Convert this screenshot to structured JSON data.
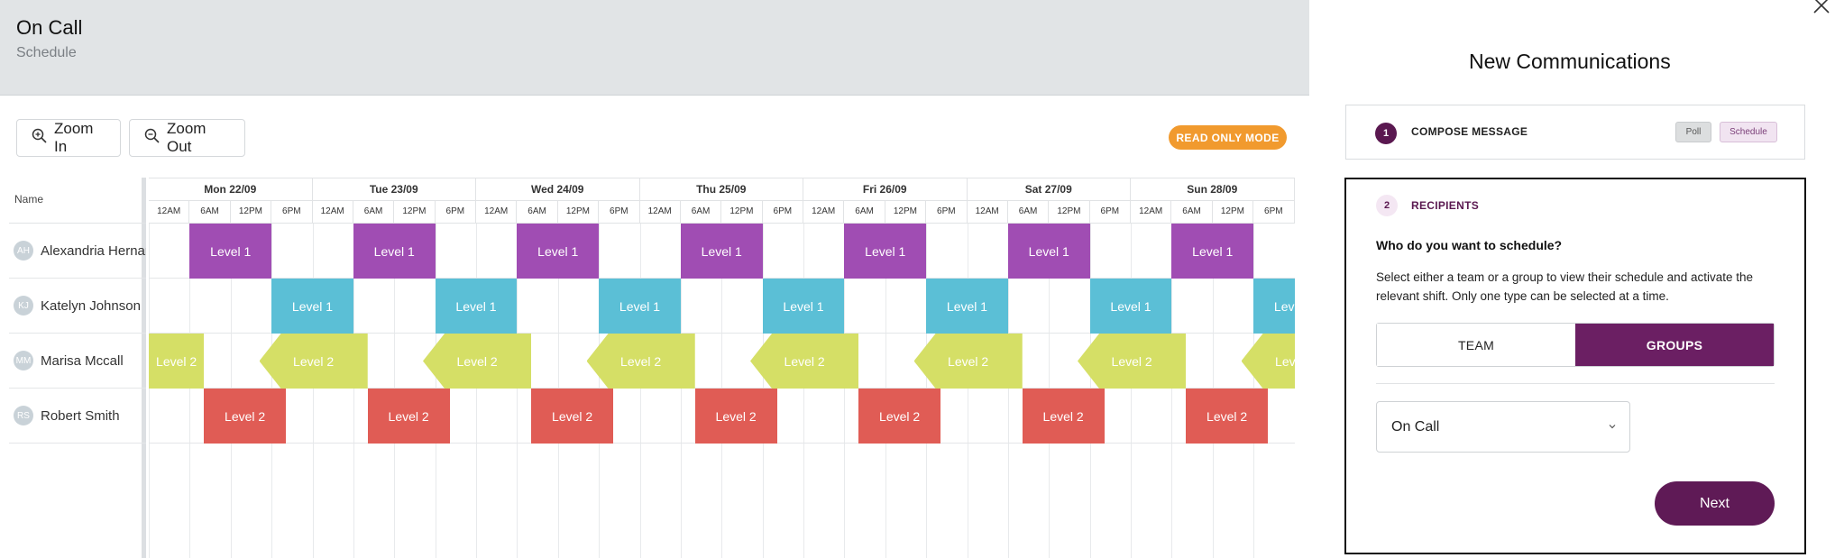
{
  "header": {
    "title": "On Call",
    "subtitle": "Schedule"
  },
  "toolbar": {
    "zoom_in_label": "Zoom In",
    "zoom_out_label": "Zoom Out",
    "read_only_label": "READ ONLY MODE"
  },
  "schedule": {
    "name_header": "Name",
    "days": [
      "Mon 22/09",
      "Tue 23/09",
      "Wed 24/09",
      "Thu 25/09",
      "Fri 26/09",
      "Sat 27/09",
      "Sun 28/09"
    ],
    "hours": [
      "12AM",
      "6AM",
      "12PM",
      "6PM"
    ],
    "people": [
      {
        "initials": "AH",
        "name": "Alexandria Hernandez",
        "shift_label": "Level 1",
        "color": "#a04db3"
      },
      {
        "initials": "KJ",
        "name": "Katelyn Johnson",
        "shift_label": "Level 1",
        "color": "#5bbfd6"
      },
      {
        "initials": "MM",
        "name": "Marisa Mccall",
        "shift_label": "Level 2",
        "color": "#d5df66"
      },
      {
        "initials": "RS",
        "name": "Robert Smith",
        "shift_label": "Level 2",
        "color": "#e05c55"
      }
    ]
  },
  "panel": {
    "title": "New Communications",
    "step1": {
      "number": "1",
      "label": "COMPOSE MESSAGE",
      "tags": [
        "Poll",
        "Schedule"
      ]
    },
    "step2": {
      "number": "2",
      "label": "RECIPIENTS",
      "question": "Who do you want to schedule?",
      "description": "Select either a team or a group to view their schedule and activate the relevant shift. Only one type can be selected at a time.",
      "team_label": "TEAM",
      "groups_label": "GROUPS",
      "selected_option": "GROUPS",
      "group_value": "On Call",
      "next_label": "Next"
    }
  },
  "icons": {
    "zoom_in": "zoom-in-icon",
    "zoom_out": "zoom-out-icon",
    "close": "close-icon",
    "chevron": "chevron-down-icon"
  }
}
